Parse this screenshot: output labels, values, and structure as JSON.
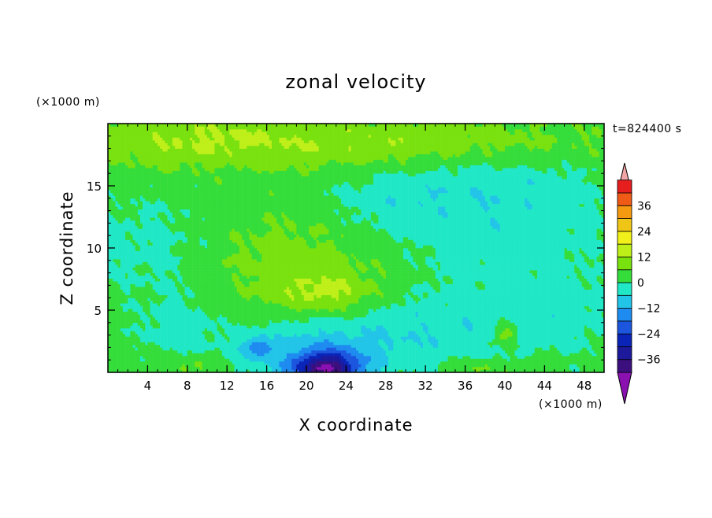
{
  "chart_data": {
    "type": "heatmap",
    "title": "zonal velocity",
    "xlabel": "X coordinate",
    "ylabel": "Z coordinate",
    "x_unit": "(×1000 m)",
    "y_unit": "(×1000 m)",
    "time_label": "t=824400 s",
    "xlim": [
      0,
      50
    ],
    "ylim": [
      0,
      20
    ],
    "x_ticks": [
      4,
      8,
      12,
      16,
      20,
      24,
      28,
      32,
      36,
      40,
      44,
      48
    ],
    "y_ticks": [
      5,
      10,
      15
    ],
    "colorbar": {
      "ticks": [
        36,
        24,
        12,
        0,
        -12,
        -24,
        -36
      ],
      "levels": [
        -42,
        -36,
        -30,
        -24,
        -18,
        -12,
        -6,
        0,
        6,
        12,
        18,
        24,
        30,
        36,
        42
      ],
      "colors": [
        "#3c0f7f",
        "#1c199b",
        "#0a24b7",
        "#1c56de",
        "#1e8bf0",
        "#22c4e8",
        "#20e8c6",
        "#35dd3a",
        "#79e10e",
        "#bfef18",
        "#f2f01a",
        "#f0c616",
        "#f59a10",
        "#ef5a17",
        "#e61e1e"
      ],
      "over_color": "#f2a4a6",
      "under_color": "#8a10b0"
    },
    "field_description": "zonal velocity contour field; mostly near zero with a negative core near the bottom around x=20-24",
    "features": [
      {
        "x": 24,
        "z": 18.5,
        "amp": 9,
        "sx": 26,
        "sz": 2.2
      },
      {
        "x": 8,
        "z": 19,
        "amp": 4,
        "sx": 8,
        "sz": 2.5
      },
      {
        "x": 22,
        "z": 6.3,
        "amp": 9,
        "sx": 5,
        "sz": 1.6
      },
      {
        "x": 22,
        "z": 8.5,
        "amp": 5,
        "sx": 11,
        "sz": 4.5
      },
      {
        "x": 14,
        "z": 10,
        "amp": 3,
        "sx": 7,
        "sz": 3.5
      },
      {
        "x": 38,
        "z": 11.5,
        "amp": -7,
        "sx": 12,
        "sz": 5
      },
      {
        "x": 38,
        "z": 15.5,
        "amp": -4,
        "sx": 13,
        "sz": 2.2
      },
      {
        "x": 28,
        "z": 13.5,
        "amp": -4,
        "sx": 5,
        "sz": 2
      },
      {
        "x": 5,
        "z": 10,
        "amp": -5,
        "sx": 8,
        "sz": 4
      },
      {
        "x": 7,
        "z": 3.5,
        "amp": -6,
        "sx": 3.5,
        "sz": 2.5
      },
      {
        "x": 22,
        "z": 0.3,
        "amp": -36,
        "sx": 3.3,
        "sz": 1.3
      },
      {
        "x": 15,
        "z": 2.0,
        "amp": -14,
        "sx": 1.5,
        "sz": 0.8
      },
      {
        "x": 21,
        "z": 1.5,
        "amp": -11,
        "sx": 8,
        "sz": 2.8
      },
      {
        "x": 34,
        "z": 3.5,
        "amp": -7,
        "sx": 12,
        "sz": 3
      },
      {
        "x": 40.2,
        "z": 3.2,
        "amp": 12,
        "sx": 1.2,
        "sz": 1.0
      },
      {
        "x": 37,
        "z": 0.3,
        "amp": 6,
        "sx": 3,
        "sz": 0.8
      },
      {
        "x": 8,
        "z": 0.5,
        "amp": 6,
        "sx": 4,
        "sz": 0.9
      },
      {
        "x": 46,
        "z": 5,
        "amp": -3,
        "sx": 5,
        "sz": 3
      },
      {
        "x": 42.5,
        "z": 0.6,
        "amp": 4,
        "sx": 2,
        "sz": 0.8
      }
    ]
  }
}
